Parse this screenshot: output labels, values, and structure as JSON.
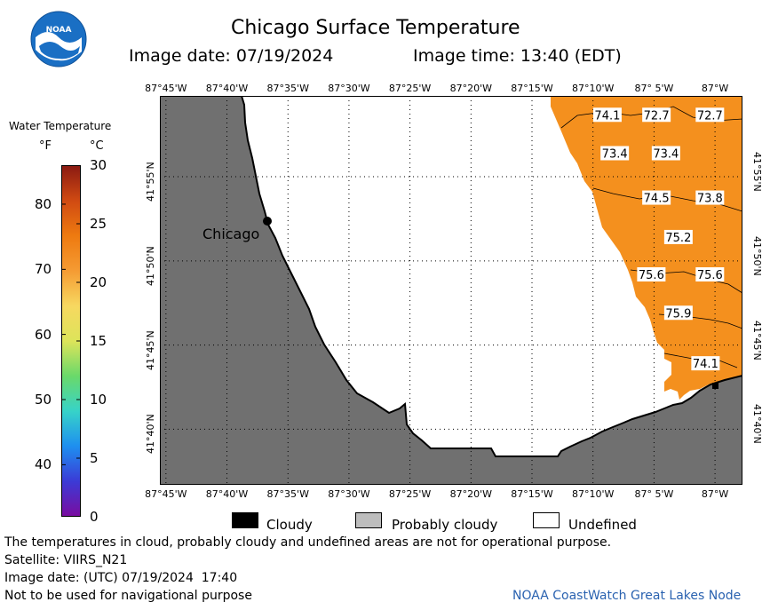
{
  "header": {
    "title": "Chicago Surface Temperature",
    "image_date_label": "Image date: 07/19/2024",
    "image_time_label": "Image time: 13:40 (EDT)",
    "logo_text": "NOAA"
  },
  "legend": {
    "title": "Water Temperature",
    "unit_f": "°F",
    "unit_c": "°C",
    "f_ticks": [
      {
        "label": "80",
        "value_c": 26.67
      },
      {
        "label": "70",
        "value_c": 21.11
      },
      {
        "label": "60",
        "value_c": 15.56
      },
      {
        "label": "50",
        "value_c": 10.0
      },
      {
        "label": "40",
        "value_c": 4.44
      }
    ],
    "c_ticks": [
      {
        "label": "30",
        "value_c": 30
      },
      {
        "label": "25",
        "value_c": 25
      },
      {
        "label": "20",
        "value_c": 20
      },
      {
        "label": "15",
        "value_c": 15
      },
      {
        "label": "10",
        "value_c": 10
      },
      {
        "label": "5",
        "value_c": 5
      },
      {
        "label": "0",
        "value_c": 0
      }
    ],
    "range_c": [
      0,
      30
    ],
    "colors": [
      "#7a0ca0",
      "#3b3bd6",
      "#1e8ff0",
      "#37d3c8",
      "#6ad96a",
      "#dde45a",
      "#f7d860",
      "#f59b33",
      "#ee7a10",
      "#d04a12",
      "#8a1a12"
    ]
  },
  "map": {
    "lon_labels": [
      "87°45'W",
      "87°40'W",
      "87°35'W",
      "87°30'W",
      "87°25'W",
      "87°20'W",
      "87°15'W",
      "87°10'W",
      "87° 5'W",
      "87°W"
    ],
    "lat_labels": [
      "41°55'N",
      "41°50'N",
      "41°45'N",
      "41°40'N"
    ],
    "city_label": "Chicago",
    "temp_labels": [
      {
        "text": "74.1",
        "lon": -87.147,
        "lat": 41.978
      },
      {
        "text": "72.7",
        "lon": -87.08,
        "lat": 41.978
      },
      {
        "text": "72.7",
        "lon": -87.007,
        "lat": 41.978
      },
      {
        "text": "73.4",
        "lon": -87.137,
        "lat": 41.94
      },
      {
        "text": "73.4",
        "lon": -87.067,
        "lat": 41.94
      },
      {
        "text": "74.5",
        "lon": -87.08,
        "lat": 41.896
      },
      {
        "text": "73.8",
        "lon": -87.007,
        "lat": 41.896
      },
      {
        "text": "75.2",
        "lon": -87.05,
        "lat": 41.857
      },
      {
        "text": "75.6",
        "lon": -87.087,
        "lat": 41.82
      },
      {
        "text": "75.6",
        "lon": -87.007,
        "lat": 41.82
      },
      {
        "text": "75.9",
        "lon": -87.05,
        "lat": 41.782
      },
      {
        "text": "74.1",
        "lon": -87.013,
        "lat": 41.732
      }
    ],
    "colors": {
      "land": "#707070",
      "water_undefined": "#ffffff",
      "sst": "#f4901e",
      "grid": "#000000"
    }
  },
  "key": {
    "cloudy": "Cloudy",
    "probably_cloudy": "Probably cloudy",
    "undefined": "Undefined",
    "colors": {
      "cloudy": "#000000",
      "probably_cloudy": "#bdbdbd",
      "undefined": "#ffffff"
    }
  },
  "notes": {
    "disclaimer": "The temperatures in cloud, probably cloudy and undefined areas are not for operational purpose.",
    "satellite": "Satellite: VIIRS_N21",
    "utc_date": "Image date: (UTC) 07/19/2024  17:40",
    "nav_warning": "Not to be used for navigational purpose",
    "credit": "NOAA CoastWatch Great Lakes Node"
  }
}
